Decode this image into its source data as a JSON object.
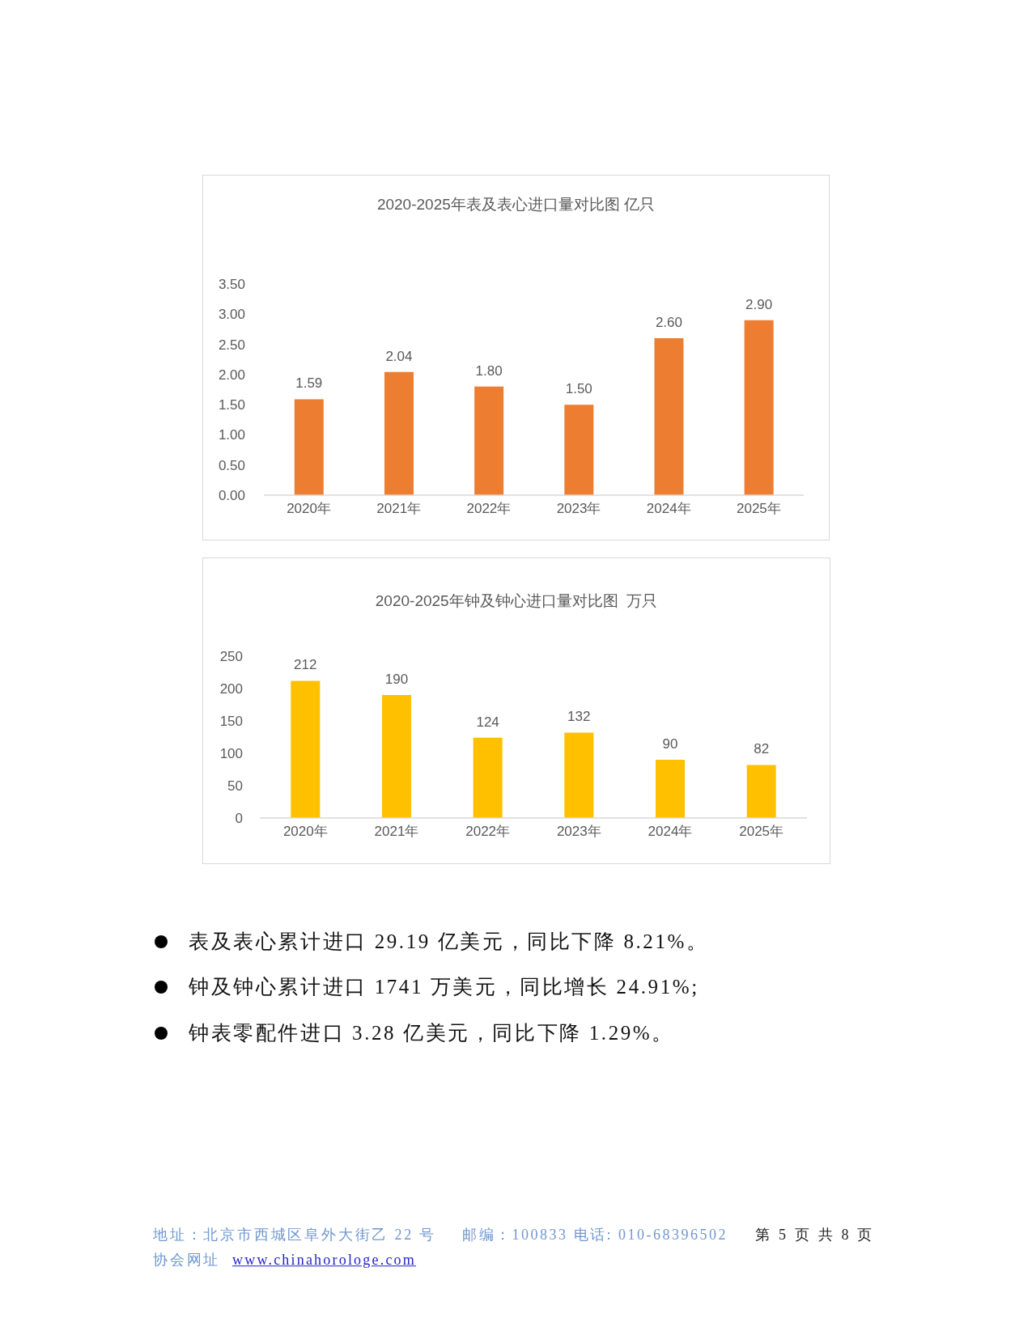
{
  "chart_data": [
    {
      "type": "bar",
      "title": "2020-2025年表及表心进口量对比图 亿只",
      "categories": [
        "2020年",
        "2021年",
        "2022年",
        "2023年",
        "2024年",
        "2025年"
      ],
      "values": [
        1.59,
        2.04,
        1.8,
        1.5,
        2.6,
        2.9
      ],
      "color": "#ed7d31",
      "ylim": [
        0,
        3.5
      ],
      "yticks": [
        {
          "value": 0,
          "label": "0.00"
        },
        {
          "value": 0.5,
          "label": "0.50"
        },
        {
          "value": 1,
          "label": "1.00"
        },
        {
          "value": 1.5,
          "label": "1.50"
        },
        {
          "value": 2,
          "label": "2.00"
        },
        {
          "value": 2.5,
          "label": "2.50"
        },
        {
          "value": 3,
          "label": "3.00"
        },
        {
          "value": 3.5,
          "label": "3.50"
        }
      ],
      "value_labels": [
        "1.59",
        "2.04",
        "1.80",
        "1.50",
        "2.60",
        "2.90"
      ]
    },
    {
      "type": "bar",
      "title": "2020-2025年钟及钟心进口量对比图  万只",
      "categories": [
        "2020年",
        "2021年",
        "2022年",
        "2023年",
        "2024年",
        "2025年"
      ],
      "values": [
        212,
        190,
        124,
        132,
        90,
        82
      ],
      "color": "#ffc000",
      "ylim": [
        0,
        250
      ],
      "yticks": [
        0,
        50,
        100,
        150,
        200,
        250
      ],
      "data_labels": true,
      "annotations": [
        "表及表心累计进口 29.19 亿美元，同比下降 8.21%。",
        "钟及钟心累计进口 1741 万美元，同比增长 24.91%;",
        "钟表零配件进口 3.28 亿美元，同比下降 1.29%。",
        "地址：北京市西城区阜外大街乙 22 号",
        "邮编：100833 电话: 010-68396502",
        "第 5 页 共 8 页",
        "协会网址",
        "www.chinahorologe.com"
      ]
    }
  ]
}
